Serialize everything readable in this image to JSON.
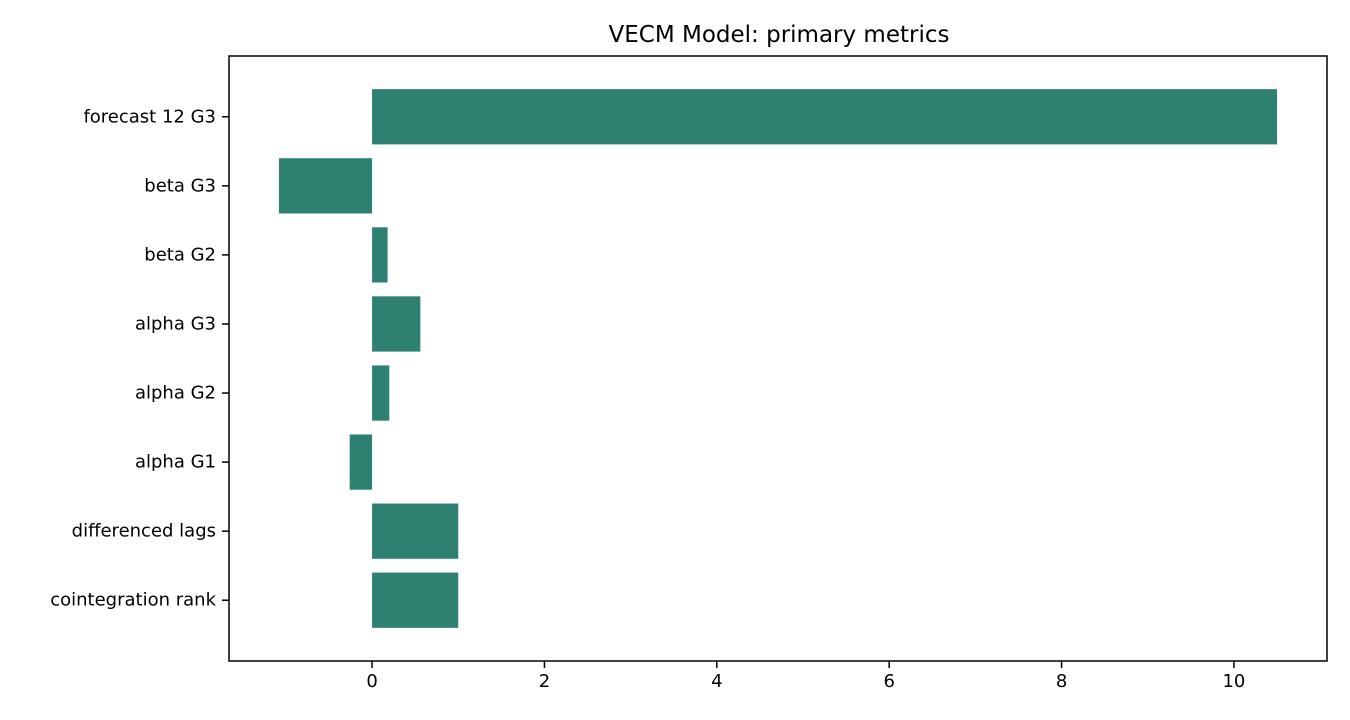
{
  "chart_data": {
    "type": "bar",
    "orientation": "horizontal",
    "title": "VECM Model: primary metrics",
    "xlabel": "",
    "ylabel": "",
    "categories": [
      "cointegration rank",
      "differenced lags",
      "alpha G1",
      "alpha G2",
      "alpha G3",
      "beta G2",
      "beta G3",
      "forecast 12 G3"
    ],
    "values": [
      1.0,
      1.0,
      -0.26,
      0.2,
      0.56,
      0.18,
      -1.08,
      10.5
    ],
    "xlim": [
      -1.66,
      11.08
    ],
    "xticks": [
      0,
      2,
      4,
      6,
      8,
      10
    ],
    "bar_color": "#2e8070",
    "grid": false,
    "legend": "none"
  }
}
